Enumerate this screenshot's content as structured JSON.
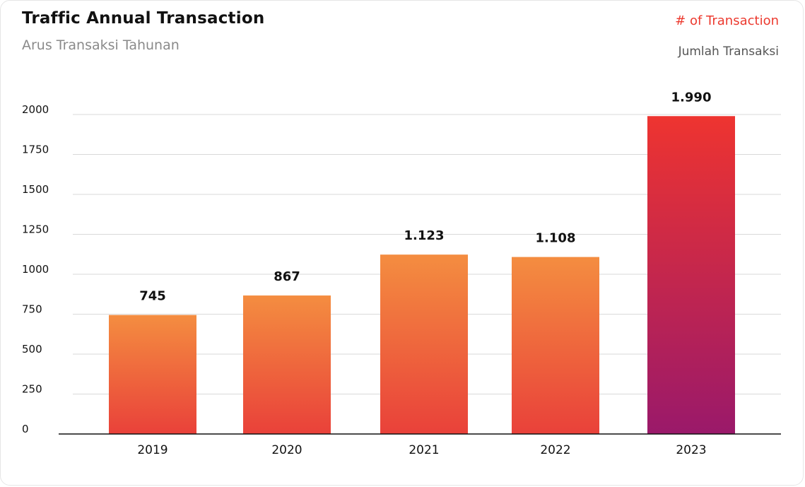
{
  "header": {
    "title": "Traffic Annual Transaction",
    "subtitle": "Arus Transaksi Tahunan",
    "legend_title": "# of Transaction",
    "legend_subtitle": "Jumlah Transaksi"
  },
  "colors": {
    "bar_top": "#f48d40",
    "bar_bottom": "#e9413a",
    "highlight_top": "#ee3430",
    "highlight_bottom": "#9a196a",
    "grid": "#d9d9d9",
    "axis": "#111111"
  },
  "chart_data": {
    "type": "bar",
    "categories": [
      "2019",
      "2020",
      "2021",
      "2022",
      "2023"
    ],
    "values": [
      745,
      867,
      1123,
      1108,
      1990
    ],
    "data_labels": [
      "745",
      "867",
      "1.123",
      "1.108",
      "1.990"
    ],
    "highlight_index": 4,
    "title": "Traffic Annual Transaction",
    "subtitle": "Arus Transaksi Tahunan",
    "xlabel": "",
    "ylabel": "",
    "ylim": [
      0,
      2000
    ],
    "yticks": [
      0,
      250,
      500,
      750,
      1000,
      1250,
      1500,
      1750,
      2000
    ],
    "grid": true,
    "legend": "top-right"
  }
}
